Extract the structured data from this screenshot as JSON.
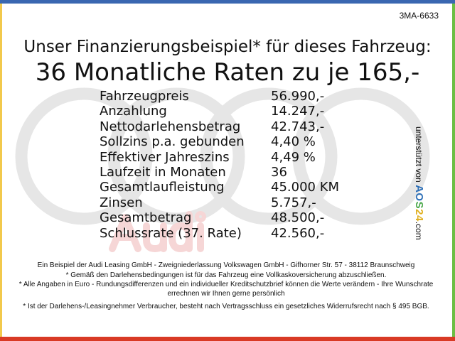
{
  "colors": {
    "top": "#3a67b1",
    "left": "#f2c94c",
    "right": "#6cbf44",
    "bottom": "#d93a25"
  },
  "code": "3MA-6633",
  "title_line1": "Unser Finanzierungsbeispiel* für dieses Fahrzeug:",
  "title_line2": "36 Monatliche Raten zu je 165,-",
  "watermark": {
    "brand": "Audi",
    "icon": "audi-rings-logo"
  },
  "rows": [
    {
      "label": "Fahrzeugpreis",
      "value": "56.990,-"
    },
    {
      "label": "Anzahlung",
      "value": "14.247,-"
    },
    {
      "label": "Nettodarlehensbetrag",
      "value": "42.743,-"
    },
    {
      "label": "Sollzins p.a. gebunden",
      "value": "4,40 %"
    },
    {
      "label": "Effektiver Jahreszins",
      "value": "4,49 %"
    },
    {
      "label": "Laufzeit in Monaten",
      "value": "36"
    },
    {
      "label": "Gesamtlaufleistung",
      "value": "45.000 KM"
    },
    {
      "label": "Zinsen",
      "value": "5.757,-"
    },
    {
      "label": "Gesamtbetrag",
      "value": "48.500,-"
    },
    {
      "label": "Schlussrate (37. Rate)",
      "value": "42.560,-"
    }
  ],
  "side": {
    "text": "unterstützt von",
    "logo": {
      "a": "A",
      "o": "O",
      "s": "S",
      "two": "2",
      "four": "4"
    },
    "domain": ".com"
  },
  "footer": [
    "Ein Beispiel der Audi Leasing GmbH - Zweigniederlassung Volkswagen GmbH - Gifhorner Str. 57 - 38112 Braunschweig",
    "* Gemäß den Darlehensbedingungen ist für das Fahrzeug eine Vollkaskoversicherung abzuschließen.",
    "* Alle Angaben in Euro - Rundungsdifferenzen und ein individueller Kreditschutzbrief können die Werte verändern - Ihre Wunschrate errechnen wir Ihnen gerne persönlich",
    "* Ist der Darlehens-/Leasingnehmer Verbraucher, besteht nach Vertragsschluss ein gesetzliches Widerrufsrecht nach § 495 BGB."
  ]
}
